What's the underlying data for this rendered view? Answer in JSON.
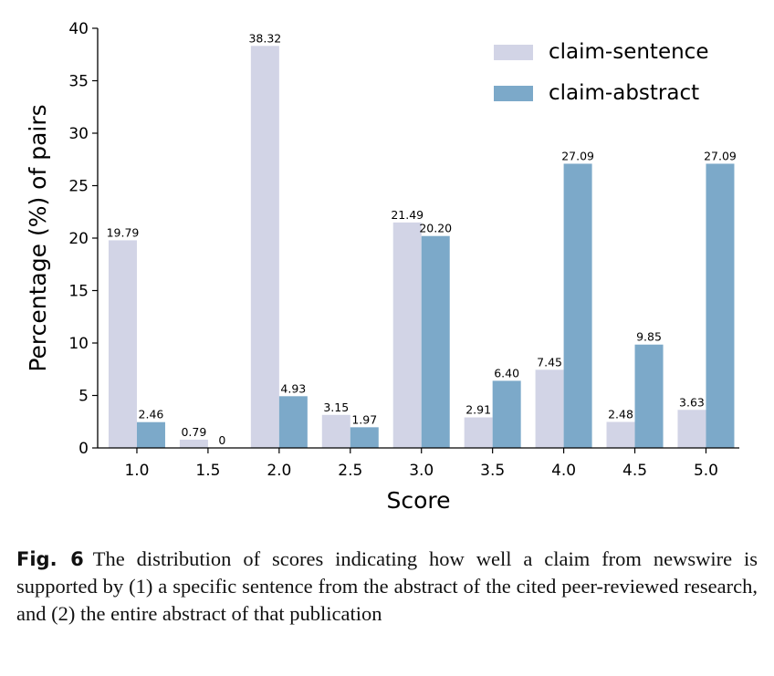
{
  "chart_data": {
    "type": "bar",
    "title": "",
    "xlabel": "Score",
    "ylabel": "Percentage (%) of pairs",
    "categories": [
      "1.0",
      "1.5",
      "2.0",
      "2.5",
      "3.0",
      "3.5",
      "4.0",
      "4.5",
      "5.0"
    ],
    "ylim": [
      0,
      40
    ],
    "yticks": [
      0,
      5,
      10,
      15,
      20,
      25,
      30,
      35,
      40
    ],
    "grid": false,
    "legend_position": "top-right",
    "series": [
      {
        "name": "claim-sentence",
        "color": "#d2d4e6",
        "values": [
          19.79,
          0.79,
          38.32,
          3.15,
          21.49,
          2.91,
          7.45,
          2.48,
          3.63
        ],
        "labels": [
          "19.79",
          "0.79",
          "38.32",
          "3.15",
          "21.49",
          "2.91",
          "7.45",
          "2.48",
          "3.63"
        ]
      },
      {
        "name": "claim-abstract",
        "color": "#7ca9c9",
        "values": [
          2.46,
          0,
          4.93,
          1.97,
          20.2,
          6.4,
          27.09,
          9.85,
          27.09
        ],
        "labels": [
          "2.46",
          "0",
          "4.93",
          "1.97",
          "20.20",
          "6.40",
          "27.09",
          "9.85",
          "27.09"
        ]
      }
    ]
  },
  "caption": {
    "label": "Fig. 6",
    "text": "The distribution of scores indicating how well a claim from newswire is supported by (1) a specific sentence from the abstract of the cited peer-reviewed research, and (2) the entire abstract of that publication"
  }
}
